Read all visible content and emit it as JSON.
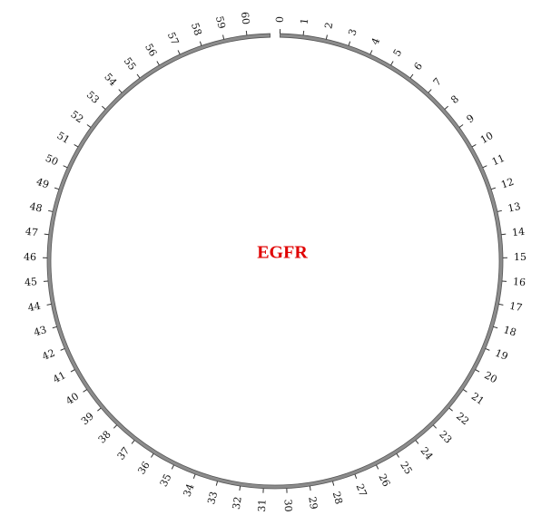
{
  "diagram": {
    "center_label": "EGFR",
    "center_label_color": "#e00000",
    "track_color": "#8c8c8c",
    "track_outline_color": "#555555",
    "scale": {
      "min": 0,
      "max": 61,
      "tick_step": 1,
      "tick_labels": [
        "0",
        "1",
        "2",
        "3",
        "4",
        "5",
        "6",
        "7",
        "8",
        "9",
        "10",
        "11",
        "12",
        "13",
        "14",
        "15",
        "16",
        "17",
        "18",
        "19",
        "20",
        "21",
        "22",
        "23",
        "24",
        "25",
        "26",
        "27",
        "28",
        "29",
        "30",
        "31",
        "32",
        "33",
        "34",
        "35",
        "36",
        "37",
        "38",
        "39",
        "40",
        "41",
        "42",
        "43",
        "44",
        "45",
        "46",
        "47",
        "48",
        "49",
        "50",
        "51",
        "52",
        "53",
        "54",
        "55",
        "56",
        "57",
        "58",
        "59",
        "60"
      ]
    }
  }
}
